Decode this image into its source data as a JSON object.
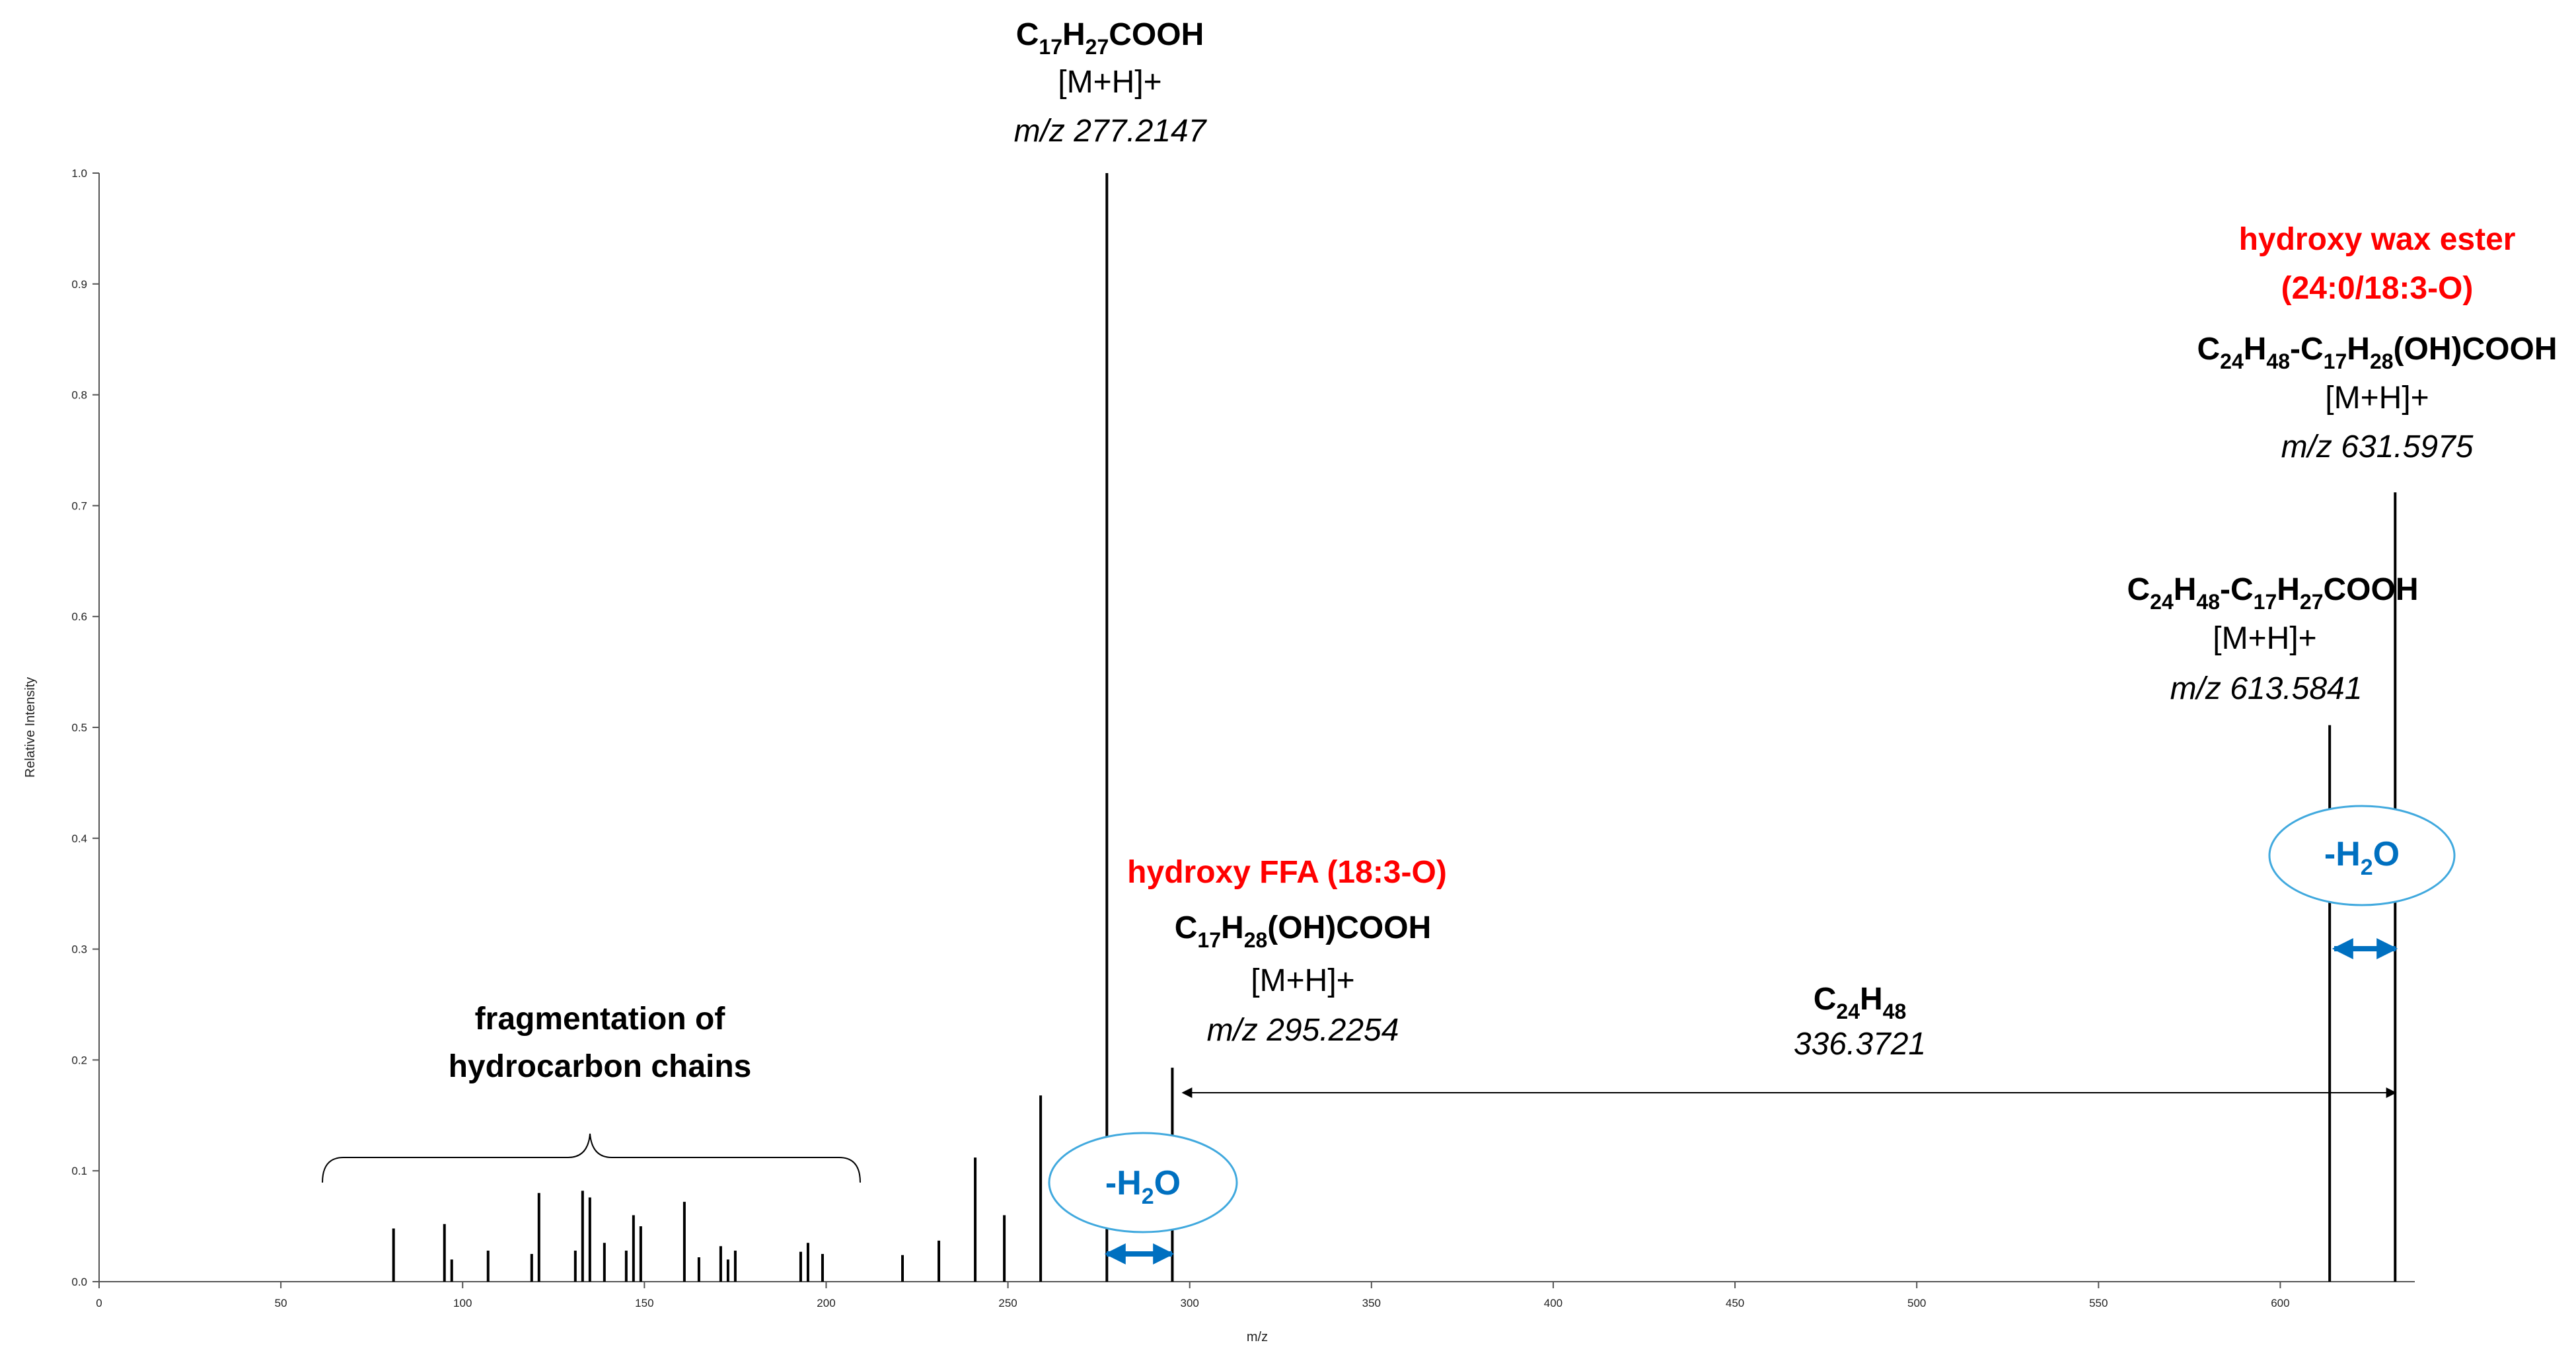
{
  "chart_data": {
    "type": "bar",
    "xlabel": "m/z",
    "ylabel": "Relative Intensity",
    "xlim": [
      0,
      637
    ],
    "ylim": [
      0,
      1.0
    ],
    "x_ticks": [
      0,
      50,
      100,
      150,
      200,
      250,
      300,
      350,
      400,
      450,
      500,
      550,
      600
    ],
    "y_ticks": [
      "0.0",
      "0.1",
      "0.2",
      "0.3",
      "0.4",
      "0.5",
      "0.6",
      "0.7",
      "0.8",
      "0.9",
      "1.0"
    ],
    "peaks": [
      {
        "x": 81,
        "y": 0.048
      },
      {
        "x": 95,
        "y": 0.052
      },
      {
        "x": 97,
        "y": 0.02
      },
      {
        "x": 107,
        "y": 0.028
      },
      {
        "x": 119,
        "y": 0.025
      },
      {
        "x": 121,
        "y": 0.08
      },
      {
        "x": 131,
        "y": 0.028
      },
      {
        "x": 133,
        "y": 0.082
      },
      {
        "x": 135,
        "y": 0.076
      },
      {
        "x": 139,
        "y": 0.035
      },
      {
        "x": 145,
        "y": 0.028
      },
      {
        "x": 147,
        "y": 0.06
      },
      {
        "x": 149,
        "y": 0.05
      },
      {
        "x": 161,
        "y": 0.072
      },
      {
        "x": 165,
        "y": 0.022
      },
      {
        "x": 171,
        "y": 0.032
      },
      {
        "x": 173,
        "y": 0.02
      },
      {
        "x": 175,
        "y": 0.028
      },
      {
        "x": 193,
        "y": 0.027
      },
      {
        "x": 195,
        "y": 0.035
      },
      {
        "x": 199,
        "y": 0.025
      },
      {
        "x": 221,
        "y": 0.024
      },
      {
        "x": 231,
        "y": 0.037
      },
      {
        "x": 241,
        "y": 0.112
      },
      {
        "x": 249,
        "y": 0.06
      },
      {
        "x": 259,
        "y": 0.168
      },
      {
        "x": 277.2147,
        "y": 1.0
      },
      {
        "x": 295.2254,
        "y": 0.193
      },
      {
        "x": 613.5841,
        "y": 0.502
      },
      {
        "x": 631.5975,
        "y": 0.712
      }
    ],
    "annotations": {
      "frag_line1": "fragmentation of",
      "frag_line2": "hydrocarbon chains",
      "peak277_formula_main": "C",
      "peak277_sub1": "17",
      "peak277_h": "H",
      "peak277_sub2": "27",
      "peak277_tail": "COOH",
      "peak277_ion": "[M+H]+",
      "peak277_mz": "m/z 277.2147",
      "ffa_red": "hydroxy FFA (18:3-O)",
      "peak295_c": "C",
      "peak295_sub1": "17",
      "peak295_h": "H",
      "peak295_sub2": "28",
      "peak295_tail": "(OH)COOH",
      "peak295_ion": "[M+H]+",
      "peak295_mz": "m/z 295.2254",
      "loss_c": "C",
      "loss_sub1": "24",
      "loss_h": "H",
      "loss_sub2": "48",
      "loss_value": "336.3721",
      "peak613_c": "C",
      "peak613_sub1": "24",
      "peak613_h": "H",
      "peak613_sub2": "48",
      "peak613_mid": "-C",
      "peak613_sub3": "17",
      "peak613_h2": "H",
      "peak613_sub4": "27",
      "peak613_tail": "COOH",
      "peak613_ion": "[M+H]+",
      "peak613_mz": "m/z 613.5841",
      "wax_red1": "hydroxy wax ester",
      "wax_red2": "(24:0/18:3-O)",
      "peak631_c": "C",
      "peak631_sub1": "24",
      "peak631_h": "H",
      "peak631_sub2": "48",
      "peak631_mid": "-C",
      "peak631_sub3": "17",
      "peak631_h2": "H",
      "peak631_sub4": "28",
      "peak631_tail": "(OH)COOH",
      "peak631_ion": "[M+H]+",
      "peak631_mz": "m/z 631.5975",
      "water_minus": "-H",
      "water_sub": "2",
      "water_o": "O"
    },
    "colors": {
      "peak": "#000000",
      "accent_red": "#ff0000",
      "accent_blue": "#0070c0",
      "ellipse_stroke": "#41a9de"
    }
  }
}
